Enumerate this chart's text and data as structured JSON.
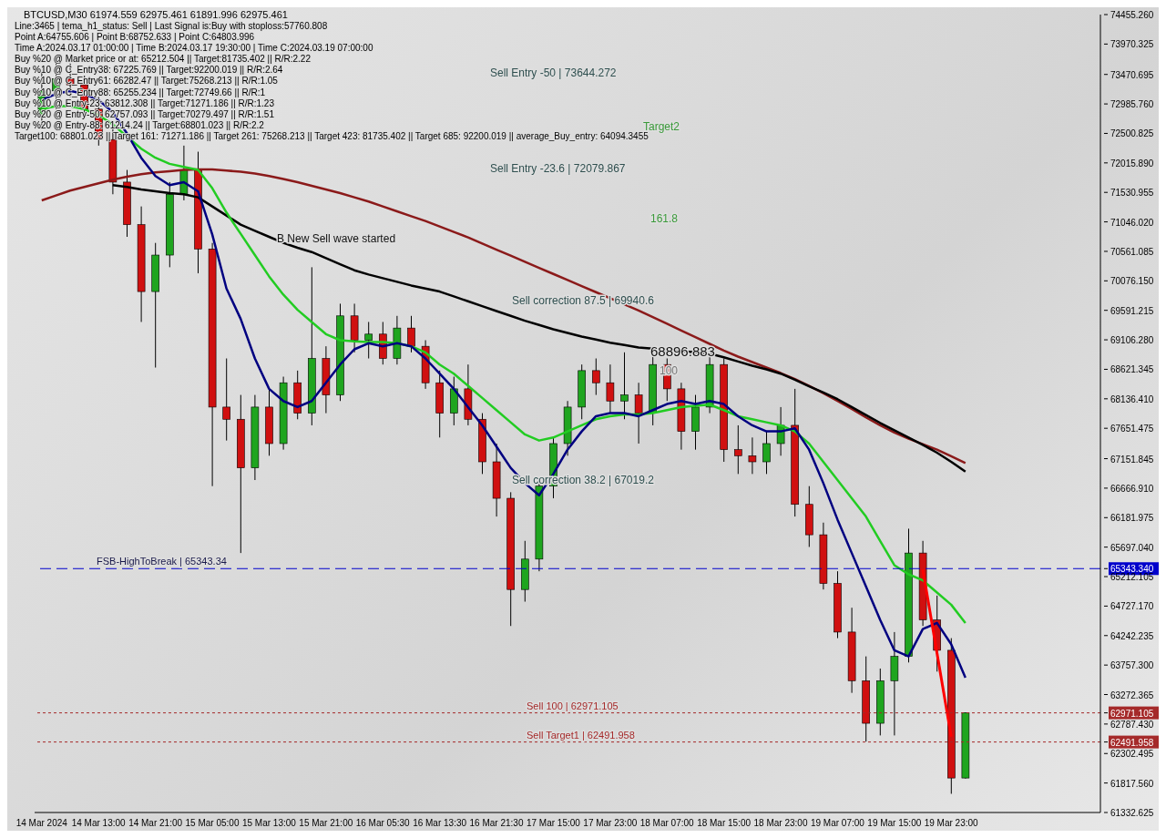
{
  "chart_data": {
    "type": "candlestick",
    "title": "BTCUSD,M30  61974.559 62975.461 61891.996 62975.461",
    "categories": [
      "14 Mar 2024",
      null,
      null,
      null,
      "14 Mar 13:00",
      null,
      null,
      null,
      "14 Mar 21:00",
      null,
      null,
      null,
      "15 Mar 05:00",
      null,
      null,
      null,
      "15 Mar 13:00",
      null,
      null,
      null,
      "15 Mar 21:00",
      null,
      null,
      null,
      "16 Mar 05:30",
      null,
      null,
      null,
      "16 Mar 13:30",
      null,
      null,
      null,
      "16 Mar 21:30",
      null,
      null,
      null,
      "17 Mar 15:00",
      null,
      null,
      null,
      "17 Mar 23:00",
      null,
      null,
      null,
      "18 Mar 07:00",
      null,
      null,
      null,
      "18 Mar 15:00",
      null,
      null,
      null,
      "18 Mar 23:00",
      null,
      null,
      null,
      "19 Mar 07:00",
      null,
      null,
      null,
      "19 Mar 15:00",
      null,
      null,
      null,
      "19 Mar 23:00",
      null,
      null,
      null,
      null,
      null,
      null,
      null,
      null,
      null,
      null
    ],
    "ohlc": [
      [
        72800,
        73500,
        72600,
        73200
      ],
      [
        73200,
        73700,
        72900,
        73400
      ],
      [
        73400,
        73650,
        73100,
        73300
      ],
      [
        73300,
        73450,
        72800,
        72900
      ],
      [
        72900,
        73100,
        72300,
        72400
      ],
      [
        72400,
        72600,
        71500,
        71700
      ],
      [
        71700,
        71900,
        70800,
        71000
      ],
      [
        71000,
        71300,
        69400,
        69900
      ],
      [
        69900,
        70700,
        68650,
        70500
      ],
      [
        70500,
        71700,
        70300,
        71500
      ],
      [
        71500,
        72300,
        71400,
        71900
      ],
      [
        71900,
        72200,
        70200,
        70600
      ],
      [
        70600,
        70700,
        66700,
        68000
      ],
      [
        68000,
        68800,
        67450,
        67800
      ],
      [
        67800,
        68200,
        65600,
        67000
      ],
      [
        67000,
        68200,
        66800,
        68000
      ],
      [
        68000,
        68300,
        67200,
        67400
      ],
      [
        67400,
        68500,
        67300,
        68400
      ],
      [
        68400,
        68600,
        67800,
        67900
      ],
      [
        67900,
        70300,
        67700,
        68800
      ],
      [
        68800,
        69000,
        67900,
        68200
      ],
      [
        68200,
        69700,
        68100,
        69500
      ],
      [
        69500,
        69700,
        68900,
        69100
      ],
      [
        69100,
        69400,
        68800,
        69200
      ],
      [
        69200,
        69400,
        68700,
        68800
      ],
      [
        68800,
        69500,
        68700,
        69300
      ],
      [
        69300,
        69500,
        68900,
        69000
      ],
      [
        69000,
        69100,
        68300,
        68400
      ],
      [
        68400,
        68600,
        67500,
        67900
      ],
      [
        67900,
        68500,
        67700,
        68300
      ],
      [
        68300,
        68700,
        67700,
        67800
      ],
      [
        67800,
        67900,
        66900,
        67100
      ],
      [
        67100,
        67400,
        66200,
        66500
      ],
      [
        66500,
        66600,
        64400,
        65000
      ],
      [
        65000,
        65800,
        64800,
        65500
      ],
      [
        65500,
        66800,
        65300,
        66700
      ],
      [
        66700,
        67500,
        66500,
        67400
      ],
      [
        67400,
        68100,
        67200,
        68000
      ],
      [
        68000,
        68700,
        67800,
        68600
      ],
      [
        68600,
        68800,
        68200,
        68400
      ],
      [
        68400,
        68700,
        67900,
        68100
      ],
      [
        68100,
        68900,
        67800,
        68200
      ],
      [
        68200,
        68400,
        67400,
        67900
      ],
      [
        67900,
        68900,
        67700,
        68700
      ],
      [
        68700,
        68800,
        68100,
        68300
      ],
      [
        68300,
        68400,
        67300,
        67600
      ],
      [
        67600,
        68200,
        67300,
        68000
      ],
      [
        68000,
        68900,
        67900,
        68700
      ],
      [
        68700,
        68800,
        67100,
        67300
      ],
      [
        67300,
        67700,
        66900,
        67200
      ],
      [
        67200,
        67500,
        66900,
        67100
      ],
      [
        67100,
        67600,
        66900,
        67400
      ],
      [
        67400,
        68000,
        67200,
        67700
      ],
      [
        67700,
        68300,
        66200,
        66400
      ],
      [
        66400,
        66700,
        65700,
        65900
      ],
      [
        65900,
        66100,
        65000,
        65100
      ],
      [
        65100,
        65300,
        64200,
        64300
      ],
      [
        64300,
        64700,
        63300,
        63500
      ],
      [
        63500,
        63900,
        62500,
        62800
      ],
      [
        62800,
        63700,
        62600,
        63500
      ],
      [
        63500,
        64300,
        62600,
        63900
      ],
      [
        63900,
        66000,
        63800,
        65600
      ],
      [
        65600,
        65800,
        64400,
        64500
      ],
      [
        64500,
        64900,
        63650,
        64000
      ],
      [
        64000,
        64200,
        61640,
        61900
      ],
      [
        61900,
        62980,
        61890,
        62975
      ],
      null,
      null,
      null,
      null,
      null,
      null,
      null,
      null,
      null
    ],
    "series": [
      {
        "type": "line",
        "color": "#8b1a1a",
        "values": [
          71400,
          71480,
          71560,
          71620,
          71680,
          71740,
          71790,
          71830,
          71860,
          71880,
          71900,
          71910,
          71910,
          71890,
          71870,
          71840,
          71800,
          71750,
          71700,
          71640,
          71580,
          71520,
          71450,
          71380,
          71300,
          71220,
          71140,
          71060,
          70970,
          70880,
          70790,
          70690,
          70590,
          70490,
          70390,
          70290,
          70190,
          70090,
          69990,
          69890,
          69790,
          69690,
          69590,
          69480,
          69370,
          69260,
          69150,
          69040,
          68930,
          68830,
          68740,
          68650,
          68560,
          68460,
          68350,
          68230,
          68100,
          67970,
          67830,
          67700,
          67580,
          67480,
          67390,
          67300,
          67190,
          67080,
          null,
          null,
          null,
          null,
          null,
          null,
          null,
          null,
          null
        ]
      },
      {
        "type": "line",
        "color": "#000000",
        "values": [
          null,
          null,
          null,
          null,
          null,
          71650,
          71620,
          71580,
          71550,
          71520,
          71500,
          71450,
          71300,
          71150,
          71000,
          70900,
          70800,
          70700,
          70620,
          70550,
          70450,
          70350,
          70250,
          70180,
          70120,
          70060,
          70000,
          69950,
          69900,
          69820,
          69740,
          69660,
          69580,
          69500,
          69420,
          69350,
          69280,
          69220,
          69160,
          69110,
          69060,
          69020,
          68980,
          68960,
          68940,
          68920,
          68900,
          68880,
          68820,
          68750,
          68680,
          68620,
          68550,
          68450,
          68340,
          68240,
          68130,
          68000,
          67870,
          67740,
          67620,
          67500,
          67380,
          67250,
          67100,
          66940,
          null,
          null,
          null,
          null,
          null,
          null,
          null,
          null,
          null
        ]
      },
      {
        "type": "line",
        "color": "#22cc22",
        "values": [
          72900,
          72950,
          72950,
          72900,
          72800,
          72650,
          72450,
          72250,
          72100,
          72000,
          71950,
          71900,
          71600,
          71200,
          70850,
          70500,
          70150,
          69850,
          69600,
          69400,
          69200,
          69100,
          69080,
          69070,
          69070,
          69050,
          69000,
          68900,
          68700,
          68550,
          68350,
          68150,
          67950,
          67750,
          67550,
          67450,
          67500,
          67600,
          67700,
          67800,
          67850,
          67880,
          67880,
          67900,
          67950,
          68000,
          68020,
          68040,
          67950,
          67850,
          67800,
          67750,
          67700,
          67600,
          67400,
          67100,
          66800,
          66500,
          66200,
          65800,
          65400,
          65250,
          65150,
          64950,
          64750,
          64450,
          null,
          null,
          null,
          null,
          null,
          null,
          null,
          null,
          null
        ]
      },
      {
        "type": "line",
        "color": "#000080",
        "values": [
          73050,
          73150,
          73200,
          73150,
          73050,
          72850,
          72500,
          72100,
          71800,
          71650,
          71700,
          71550,
          70840,
          69950,
          69450,
          68800,
          68300,
          68100,
          68000,
          68100,
          68400,
          68700,
          68950,
          69050,
          69000,
          69050,
          69000,
          68800,
          68550,
          68300,
          68000,
          67700,
          67350,
          67000,
          66750,
          66550,
          66900,
          67300,
          67600,
          67850,
          67900,
          67900,
          67850,
          67950,
          68050,
          68100,
          68050,
          68100,
          68050,
          67850,
          67700,
          67600,
          67600,
          67650,
          67300,
          66750,
          66150,
          65600,
          65050,
          64500,
          64000,
          63900,
          64350,
          64450,
          64100,
          63550,
          null,
          null,
          null,
          null,
          null,
          null,
          null,
          null,
          null
        ]
      },
      {
        "type": "line",
        "color": "#ff0000",
        "values": [
          null,
          null,
          null,
          null,
          null,
          null,
          null,
          null,
          null,
          null,
          null,
          null,
          null,
          null,
          null,
          null,
          null,
          null,
          null,
          null,
          null,
          null,
          null,
          null,
          null,
          null,
          null,
          null,
          null,
          null,
          null,
          null,
          null,
          null,
          null,
          null,
          null,
          null,
          null,
          null,
          null,
          null,
          null,
          null,
          null,
          null,
          null,
          null,
          null,
          null,
          null,
          null,
          null,
          null,
          null,
          null,
          null,
          null,
          null,
          null,
          null,
          null,
          65330,
          null,
          62580,
          null,
          null,
          null,
          null,
          null,
          null,
          null,
          null,
          null,
          null
        ]
      }
    ],
    "ylim": [
      61332.625,
      74455.26
    ],
    "yticks": [
      {
        "value": 74455.26,
        "label": "74455.260"
      },
      {
        "value": 73970.325,
        "label": "73970.325"
      },
      {
        "value": 73470.695,
        "label": "73470.695"
      },
      {
        "value": 72985.76,
        "label": "72985.760"
      },
      {
        "value": 72500.825,
        "label": "72500.825"
      },
      {
        "value": 72015.89,
        "label": "72015.890"
      },
      {
        "value": 71530.955,
        "label": "71530.955"
      },
      {
        "value": 71046.02,
        "label": "71046.020"
      },
      {
        "value": 70561.085,
        "label": "70561.085"
      },
      {
        "value": 70076.15,
        "label": "70076.150"
      },
      {
        "value": 69591.215,
        "label": "69591.215"
      },
      {
        "value": 69106.28,
        "label": "69106.280"
      },
      {
        "value": 68621.345,
        "label": "68621.345"
      },
      {
        "value": 68136.41,
        "label": "68136.410"
      },
      {
        "value": 67651.475,
        "label": "67651.475"
      },
      {
        "value": 67151.845,
        "label": "67151.845"
      },
      {
        "value": 66666.91,
        "label": "66666.910"
      },
      {
        "value": 66181.975,
        "label": "66181.975"
      },
      {
        "value": 65697.04,
        "label": "65697.040"
      },
      {
        "value": 65343.34,
        "label": "65343.340"
      },
      {
        "value": 65212.105,
        "label": "65212.105"
      },
      {
        "value": 64727.17,
        "label": "64727.170"
      },
      {
        "value": 64242.235,
        "label": "64242.235"
      },
      {
        "value": 63757.3,
        "label": "63757.300"
      },
      {
        "value": 63272.365,
        "label": "63272.365"
      },
      {
        "value": 62971.105,
        "label": "62971.105"
      },
      {
        "value": 62787.43,
        "label": "62787.430"
      },
      {
        "value": 62491.958,
        "label": "62491.958"
      },
      {
        "value": 62302.495,
        "label": "62302.495"
      },
      {
        "value": 61817.56,
        "label": "61817.560"
      },
      {
        "value": 61332.625,
        "label": "61332.625"
      }
    ],
    "ref_lines": [
      {
        "axis": "y",
        "value": 65343.34,
        "label": "FSB-HighToBreak | 65343.34",
        "color": "#0000cc",
        "line_style": "dashed"
      },
      {
        "axis": "y",
        "value": 62971.105,
        "label": "Sell 100 | 62971.105",
        "color": "#a52a2a",
        "line_style": "dotted"
      },
      {
        "axis": "y",
        "value": 62491.958,
        "label": "Sell Target1 | 62491.958",
        "color": "#a52a2a",
        "line_style": "dotted"
      }
    ],
    "annotations": [
      "Line:3465 | tema_h1_status: Sell | Last Signal is:Buy with stoploss:57760.808",
      "Point A:64755.606 | Point B:68752.633 | Point C:64803.996",
      "Time A:2024.03.17 01:00:00 | Time B:2024.03.17 19:30:00 | Time C:2024.03.19 07:00:00",
      "Buy %20 @ Market price or at: 65212.504 || Target:81735.402 || R/R:2.22",
      "Buy %10 @ C_Entry38: 67225.769 || Target:92200.019 || R/R:2.64",
      "Buy %10 @ C_Entry61: 66282.47 || Target:75268.213 || R/R:1.05",
      "Buy %10 @ C_Entry88: 65255.234 || Target:72749.66 || R/R:1",
      "Buy %10 @ Entry-23: 63812.308 || Target:71271.186 || R/R:1.23",
      "Buy %20 @ Entry-50: 62757.093 || Target:70279.497 || R/R:1.51",
      "Buy %20 @ Entry-88: 61214.24 || Target:68801.023 || R/R:2.2",
      "Target100: 68801.023 || Target 161: 71271.186 || Target 261: 75268.213 || Target 423: 81735.402 || Target 685: 92200.019 || average_Buy_entry: 64094.3455",
      "Sell Entry -50 | 73644.272",
      "Target2",
      "Sell Entry -23.6 | 72079.867",
      "161.8",
      "B New Sell wave started",
      "Sell correction 87.5 | 69940.6",
      "68896.883",
      "100",
      "Sell correction 38.2 | 67019.2"
    ],
    "grid": false
  }
}
